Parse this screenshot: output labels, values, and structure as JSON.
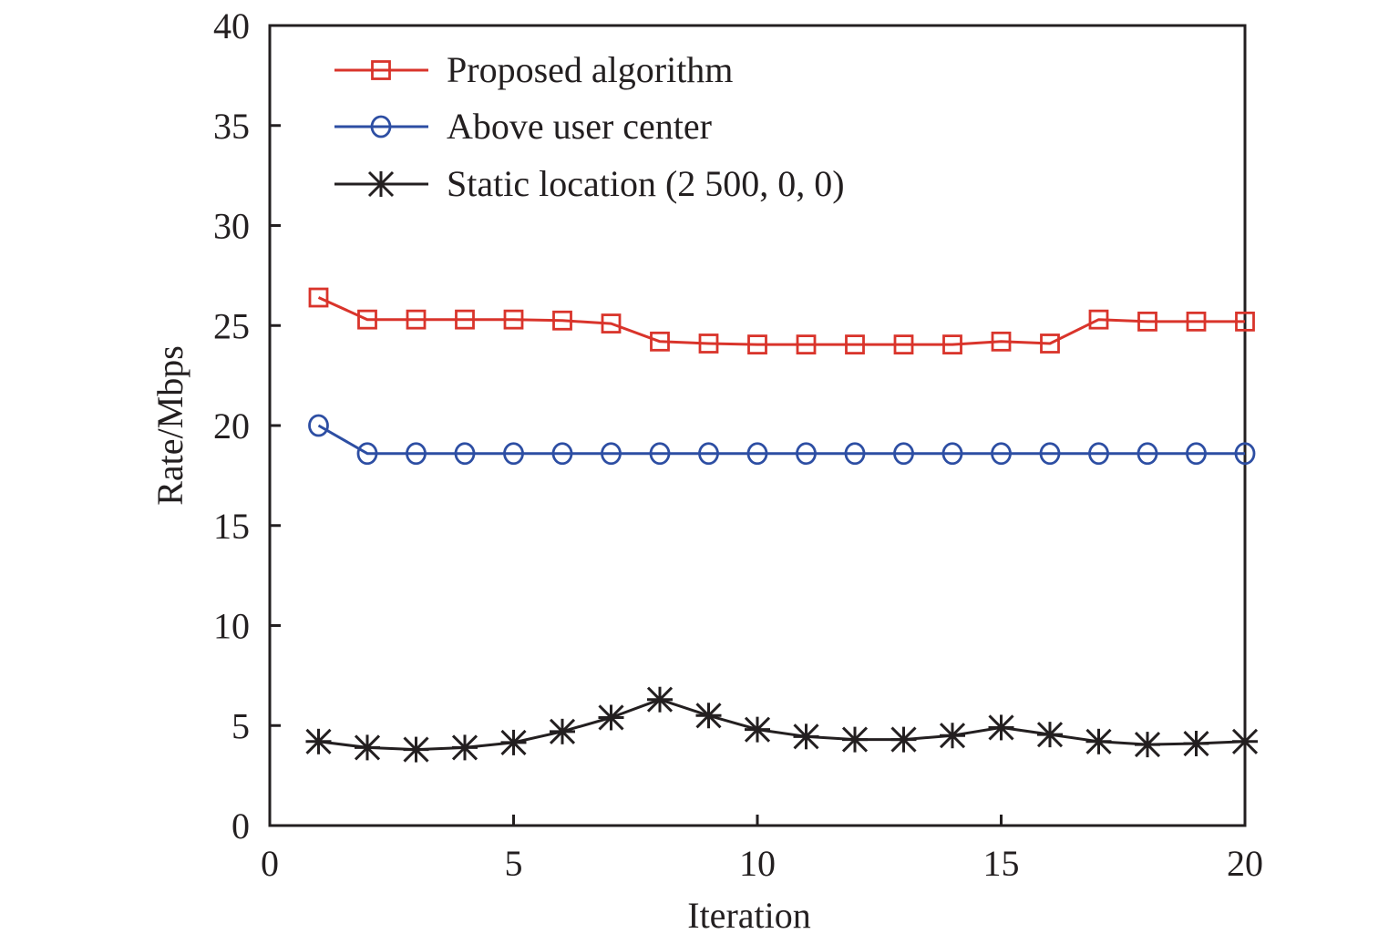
{
  "chart_data": {
    "type": "line",
    "title": "",
    "xlabel": "Iteration",
    "ylabel": "Rate/Mbps",
    "xlim": [
      0,
      20
    ],
    "ylim": [
      0,
      40
    ],
    "xticks": [
      0,
      5,
      10,
      15,
      20
    ],
    "yticks": [
      0,
      5,
      10,
      15,
      20,
      25,
      30,
      35,
      40
    ],
    "xtick_labels": [
      "0",
      "5",
      "10",
      "15",
      "20"
    ],
    "ytick_labels": [
      "0",
      "5",
      "10",
      "15",
      "20",
      "25",
      "30",
      "35",
      "40"
    ],
    "grid": false,
    "legend_position": "top-left",
    "x": [
      1,
      2,
      3,
      4,
      5,
      6,
      7,
      8,
      9,
      10,
      11,
      12,
      13,
      14,
      15,
      16,
      17,
      18,
      19,
      20
    ],
    "series": [
      {
        "name": "Proposed algorithm",
        "color": "#d9342b",
        "marker": "square",
        "values": [
          26.4,
          25.3,
          25.3,
          25.3,
          25.3,
          25.25,
          25.1,
          24.2,
          24.1,
          24.05,
          24.05,
          24.05,
          24.05,
          24.05,
          24.2,
          24.1,
          25.3,
          25.2,
          25.2,
          25.2
        ]
      },
      {
        "name": "Above user center",
        "color": "#2d4ea3",
        "marker": "circle",
        "values": [
          20.0,
          18.6,
          18.6,
          18.6,
          18.6,
          18.6,
          18.6,
          18.6,
          18.6,
          18.6,
          18.6,
          18.6,
          18.6,
          18.6,
          18.6,
          18.6,
          18.6,
          18.6,
          18.6,
          18.6
        ]
      },
      {
        "name": "Static location (2 500, 0, 0)",
        "color": "#231f20",
        "marker": "asterisk",
        "values": [
          4.2,
          3.9,
          3.8,
          3.9,
          4.15,
          4.7,
          5.4,
          6.3,
          5.5,
          4.8,
          4.45,
          4.3,
          4.3,
          4.5,
          4.9,
          4.55,
          4.2,
          4.05,
          4.1,
          4.2
        ]
      }
    ]
  }
}
